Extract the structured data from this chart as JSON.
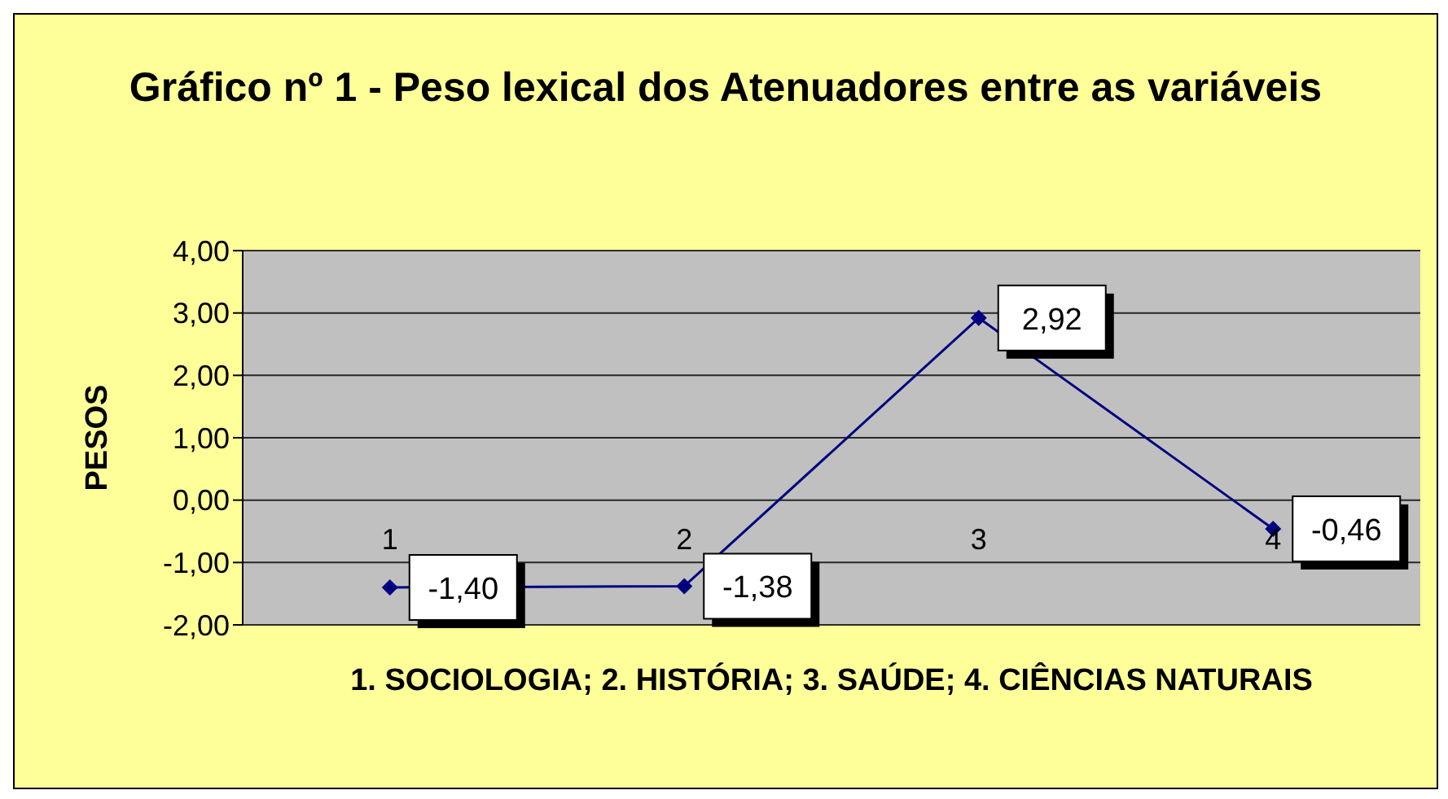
{
  "chart_data": {
    "type": "line",
    "title": "Gráfico nº 1 - Peso lexical dos Atenuadores entre as variáveis",
    "xlabel": "1. SOCIOLOGIA; 2. HISTÓRIA; 3. SAÚDE; 4. CIÊNCIAS NATURAIS",
    "ylabel": "PESOS",
    "categories": [
      "1",
      "2",
      "3",
      "4"
    ],
    "series": [
      {
        "color": "#000080",
        "values": [
          -1.4,
          -1.38,
          2.92,
          -0.46
        ],
        "value_labels": [
          "-1,40",
          "-1,38",
          "2,92",
          "-0,46"
        ]
      }
    ],
    "ylim": [
      -2,
      4
    ],
    "yticks": [
      {
        "value": -2,
        "label": "-2,00"
      },
      {
        "value": -1,
        "label": "-1,00"
      },
      {
        "value": 0,
        "label": "0,00"
      },
      {
        "value": 1,
        "label": "1,00"
      },
      {
        "value": 2,
        "label": "2,00"
      },
      {
        "value": 3,
        "label": "3,00"
      },
      {
        "value": 4,
        "label": "4,00"
      }
    ],
    "grid": "y",
    "marker": "diamond",
    "line_style": "solid"
  }
}
